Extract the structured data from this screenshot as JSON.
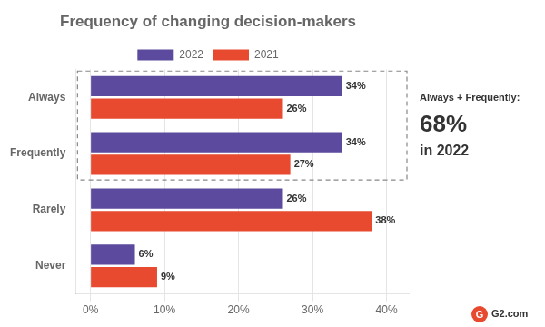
{
  "chart_data": {
    "type": "bar",
    "orientation": "horizontal",
    "title": "Frequency of changing decision-makers",
    "categories": [
      "Always",
      "Frequently",
      "Rarely",
      "Never"
    ],
    "series": [
      {
        "name": "2022",
        "color": "#5c4a9e",
        "values": [
          34,
          34,
          26,
          6
        ],
        "value_labels": [
          "34%",
          "34%",
          "26%",
          "6%"
        ]
      },
      {
        "name": "2021",
        "color": "#e84a2f",
        "values": [
          26,
          27,
          38,
          9
        ],
        "value_labels": [
          "26%",
          "27%",
          "38%",
          "9%"
        ]
      }
    ],
    "xlim": [
      -2,
      43
    ],
    "xticks": [
      {
        "value": 0,
        "label": "0%"
      },
      {
        "value": 10,
        "label": "10%"
      },
      {
        "value": 20,
        "label": "20%"
      },
      {
        "value": 30,
        "label": "30%"
      },
      {
        "value": 40,
        "label": "40%"
      }
    ],
    "grid": true,
    "legend": "top",
    "data_labels": true,
    "annotations": [
      "Always + Frequently:",
      "68%",
      "in 2022",
      "G",
      "G2.com"
    ]
  }
}
